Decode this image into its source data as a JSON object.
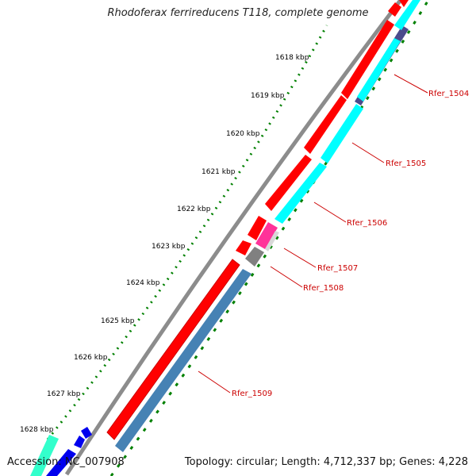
{
  "title": "Rhodoferax ferrireducens T118, complete genome",
  "footer": {
    "accession": "Accession: NC_007908",
    "summary": "Topology: circular; Length: 4,712,337 bp; Genes: 4,228"
  },
  "ticks": [
    "1618 kbp",
    "1619 kbp",
    "1620 kbp",
    "1621 kbp",
    "1622 kbp",
    "1623 kbp",
    "1624 kbp",
    "1625 kbp",
    "1626 kbp",
    "1627 kbp",
    "1628 kbp"
  ],
  "gene_labels": [
    "Rfer_1504",
    "Rfer_1505",
    "Rfer_1506",
    "Rfer_1507",
    "Rfer_1508",
    "Rfer_1509"
  ],
  "colors": {
    "forward_cds": "#ff0000",
    "rfer_1504": "#4b4b8c",
    "rfer_1505": "#00ffff",
    "rfer_1506": "#00ffff",
    "rfer_1507": "#ff3399",
    "rfer_1508": "#808080",
    "rfer_1509": "#4682b4",
    "backbone": "#8c8c8c",
    "tick_dots": "#008000",
    "label_red": "#cc0000"
  }
}
